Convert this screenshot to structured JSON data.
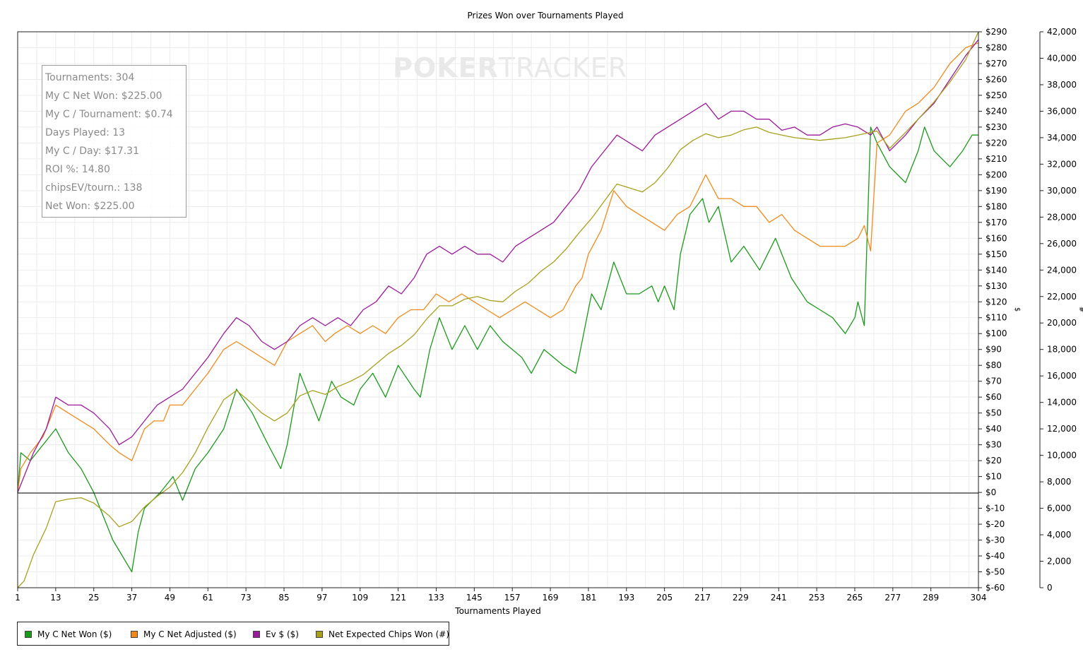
{
  "watermark": {
    "part1": "POKER",
    "part2": "TRACKER"
  },
  "stats": [
    "Tournaments: 304",
    "My C Net Won: $225.00",
    "My C / Tournament: $0.74",
    "Days Played: 13",
    "My C / Day: $17.31",
    "ROI %: 14.80",
    "chipsEV/tourn.: 138",
    "Net Won: $225.00"
  ],
  "legend": [
    {
      "label": "My C Net Won ($)",
      "color": "#1a9a1a"
    },
    {
      "label": "My C Net Adjusted ($)",
      "color": "#f08a1c"
    },
    {
      "label": "Ev $ ($)",
      "color": "#9b1a9b"
    },
    {
      "label": "Net Expected Chips Won (#)",
      "color": "#a8a01c"
    }
  ],
  "chart_data": {
    "type": "line",
    "title": "Prizes Won over Tournaments Played",
    "xlabel": "Tournaments Played",
    "ylabel": "$",
    "y2label": "#",
    "x_ticks": [
      1,
      13,
      25,
      37,
      49,
      61,
      73,
      85,
      97,
      109,
      121,
      133,
      145,
      157,
      169,
      181,
      193,
      205,
      217,
      229,
      241,
      253,
      265,
      277,
      289,
      304
    ],
    "xlim": [
      1,
      304
    ],
    "ylim": [
      -60,
      290
    ],
    "y_ticks": [
      -60,
      -50,
      -40,
      -30,
      -20,
      -10,
      0,
      10,
      20,
      30,
      40,
      50,
      60,
      70,
      80,
      90,
      100,
      110,
      120,
      130,
      140,
      150,
      160,
      170,
      180,
      190,
      200,
      210,
      220,
      230,
      240,
      250,
      260,
      270,
      280,
      290
    ],
    "y2lim": [
      0,
      42000
    ],
    "y2_ticks": [
      0,
      2000,
      4000,
      6000,
      8000,
      10000,
      12000,
      14000,
      16000,
      18000,
      20000,
      22000,
      24000,
      26000,
      28000,
      30000,
      32000,
      34000,
      36000,
      38000,
      40000,
      42000
    ],
    "grid": true,
    "legend_position": "bottom",
    "series": [
      {
        "name": "My C Net Won ($)",
        "color": "#1a9a1a",
        "axis": "left",
        "x": [
          1,
          2,
          5,
          13,
          17,
          21,
          25,
          31,
          37,
          39,
          41,
          46,
          50,
          53,
          57,
          61,
          66,
          70,
          75,
          80,
          84,
          86,
          90,
          96,
          100,
          103,
          107,
          109,
          113,
          117,
          121,
          126,
          128,
          131,
          134,
          138,
          142,
          146,
          150,
          154,
          160,
          163,
          167,
          173,
          177,
          178,
          182,
          185,
          189,
          193,
          197,
          201,
          203,
          205,
          208,
          210,
          213,
          217,
          219,
          222,
          226,
          230,
          235,
          240,
          245,
          250,
          254,
          258,
          262,
          265,
          266,
          268,
          270,
          272,
          276,
          281,
          285,
          287,
          290,
          295,
          299,
          302,
          304
        ],
        "y": [
          0,
          25,
          20,
          40,
          25,
          15,
          0,
          -30,
          -50,
          -25,
          -10,
          0,
          10,
          -5,
          15,
          25,
          40,
          65,
          50,
          30,
          15,
          30,
          75,
          45,
          70,
          60,
          55,
          65,
          75,
          60,
          80,
          65,
          60,
          90,
          110,
          90,
          105,
          90,
          105,
          95,
          85,
          75,
          90,
          80,
          75,
          85,
          125,
          115,
          145,
          125,
          125,
          130,
          120,
          130,
          115,
          150,
          175,
          185,
          170,
          180,
          145,
          155,
          140,
          160,
          135,
          120,
          115,
          110,
          100,
          110,
          120,
          105,
          230,
          220,
          205,
          195,
          215,
          230,
          215,
          205,
          215,
          225,
          225
        ]
      },
      {
        "name": "My C Net Adjusted ($)",
        "color": "#f08a1c",
        "axis": "left",
        "x": [
          1,
          2,
          5,
          9,
          13,
          17,
          21,
          25,
          30,
          33,
          37,
          41,
          44,
          47,
          49,
          53,
          57,
          61,
          66,
          70,
          74,
          78,
          82,
          86,
          90,
          94,
          98,
          101,
          105,
          109,
          113,
          117,
          121,
          125,
          129,
          133,
          137,
          141,
          145,
          149,
          153,
          157,
          161,
          165,
          169,
          173,
          177,
          179,
          181,
          185,
          189,
          193,
          197,
          201,
          205,
          209,
          213,
          218,
          222,
          226,
          230,
          234,
          238,
          242,
          246,
          250,
          254,
          258,
          262,
          266,
          268,
          270,
          272,
          276,
          281,
          285,
          290,
          295,
          300,
          304
        ],
        "y": [
          0,
          15,
          25,
          35,
          55,
          50,
          45,
          40,
          30,
          25,
          20,
          40,
          45,
          45,
          55,
          55,
          65,
          75,
          90,
          95,
          90,
          85,
          80,
          95,
          100,
          105,
          95,
          100,
          105,
          100,
          105,
          100,
          110,
          115,
          115,
          125,
          120,
          125,
          120,
          115,
          110,
          115,
          120,
          115,
          110,
          115,
          130,
          135,
          150,
          165,
          190,
          180,
          175,
          170,
          165,
          175,
          180,
          200,
          185,
          185,
          180,
          180,
          170,
          175,
          165,
          160,
          155,
          155,
          155,
          160,
          168,
          152,
          220,
          225,
          240,
          245,
          255,
          270,
          280,
          283
        ]
      },
      {
        "name": "Ev $ ($)",
        "color": "#9b1a9b",
        "axis": "left",
        "x": [
          1,
          3,
          6,
          10,
          13,
          17,
          21,
          25,
          30,
          33,
          37,
          41,
          45,
          49,
          53,
          57,
          61,
          66,
          70,
          74,
          78,
          82,
          86,
          90,
          94,
          98,
          102,
          106,
          110,
          114,
          118,
          122,
          126,
          130,
          134,
          138,
          142,
          146,
          150,
          154,
          158,
          162,
          166,
          170,
          174,
          178,
          182,
          186,
          190,
          194,
          198,
          202,
          206,
          210,
          214,
          218,
          222,
          226,
          230,
          234,
          238,
          242,
          246,
          250,
          254,
          258,
          262,
          266,
          270,
          272,
          276,
          281,
          285,
          290,
          295,
          300,
          304
        ],
        "y": [
          0,
          10,
          25,
          40,
          60,
          55,
          55,
          50,
          40,
          30,
          35,
          45,
          55,
          60,
          65,
          75,
          85,
          100,
          110,
          105,
          95,
          90,
          95,
          105,
          110,
          105,
          110,
          105,
          115,
          120,
          130,
          125,
          135,
          150,
          155,
          150,
          155,
          150,
          150,
          145,
          155,
          160,
          165,
          170,
          180,
          190,
          205,
          215,
          225,
          220,
          215,
          225,
          230,
          235,
          240,
          245,
          235,
          240,
          240,
          235,
          235,
          228,
          230,
          225,
          225,
          230,
          232,
          230,
          225,
          230,
          215,
          225,
          235,
          245,
          260,
          275,
          285
        ]
      },
      {
        "name": "Net Expected Chips Won (#)",
        "color": "#a8a01c",
        "axis": "right",
        "x": [
          1,
          3,
          6,
          10,
          13,
          17,
          21,
          25,
          30,
          33,
          37,
          41,
          45,
          49,
          53,
          57,
          61,
          66,
          70,
          74,
          78,
          82,
          86,
          90,
          94,
          98,
          102,
          106,
          110,
          114,
          118,
          122,
          126,
          130,
          134,
          138,
          142,
          146,
          150,
          154,
          158,
          162,
          166,
          170,
          174,
          178,
          182,
          186,
          190,
          194,
          198,
          202,
          206,
          210,
          214,
          218,
          222,
          226,
          230,
          234,
          238,
          242,
          246,
          250,
          254,
          258,
          262,
          266,
          270,
          272,
          276,
          281,
          285,
          290,
          295,
          300,
          304
        ],
        "y": [
          0,
          500,
          2500,
          4500,
          6500,
          6700,
          6800,
          6400,
          5400,
          4600,
          5000,
          6100,
          6900,
          7600,
          8700,
          10200,
          12100,
          14200,
          14900,
          14100,
          13200,
          12600,
          13200,
          14500,
          14900,
          14600,
          15200,
          15600,
          16100,
          16900,
          17700,
          18300,
          19100,
          20300,
          21300,
          21300,
          21800,
          22000,
          21700,
          21600,
          22400,
          23000,
          23900,
          24600,
          25600,
          26800,
          27900,
          29200,
          30500,
          30200,
          29900,
          30600,
          31700,
          33100,
          33800,
          34300,
          34000,
          34200,
          34600,
          34800,
          34400,
          34200,
          34000,
          33900,
          33800,
          33900,
          34000,
          34200,
          34400,
          34500,
          33200,
          34400,
          35400,
          36700,
          38200,
          39900,
          42000
        ]
      }
    ]
  }
}
